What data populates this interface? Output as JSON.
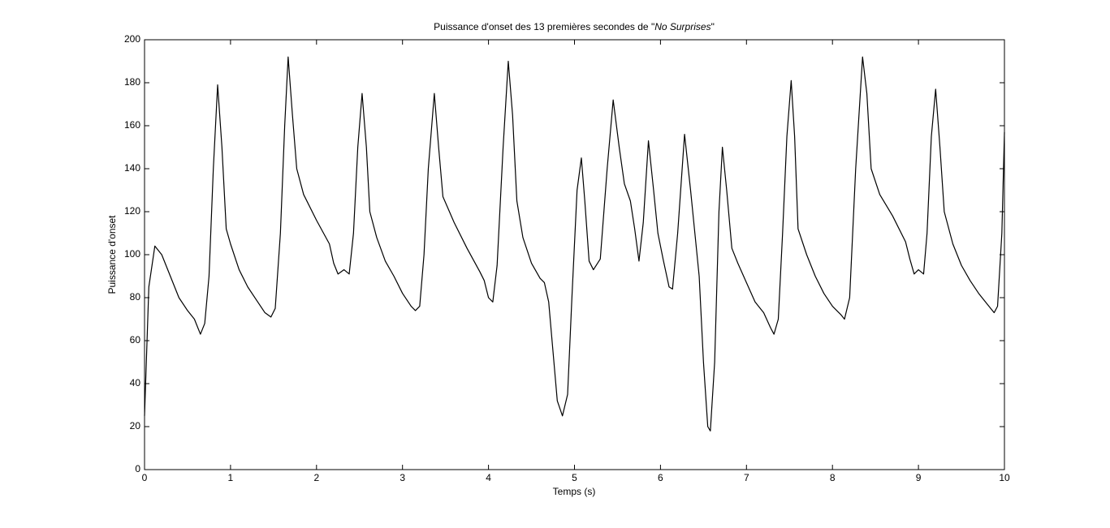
{
  "chart_data": {
    "type": "line",
    "title": {
      "before": "Puissance d'onset des 13 premières secondes de \"",
      "italic": "No Surprises",
      "after": "\""
    },
    "xlabel": "Temps (s)",
    "ylabel": "Puissance d'onset",
    "xlim": [
      0,
      10
    ],
    "ylim": [
      0,
      200
    ],
    "xticks": [
      0,
      1,
      2,
      3,
      4,
      5,
      6,
      7,
      8,
      9,
      10
    ],
    "yticks": [
      0,
      20,
      40,
      60,
      80,
      100,
      120,
      140,
      160,
      180,
      200
    ],
    "grid": false,
    "series": [
      {
        "color": "#000000",
        "x": [
          0,
          0.05,
          0.12,
          0.2,
          0.3,
          0.4,
          0.5,
          0.58,
          0.65,
          0.7,
          0.75,
          0.8,
          0.85,
          0.9,
          0.95,
          1.0,
          1.1,
          1.2,
          1.3,
          1.4,
          1.47,
          1.52,
          1.58,
          1.63,
          1.67,
          1.72,
          1.77,
          1.85,
          2.0,
          2.15,
          2.2,
          2.25,
          2.32,
          2.38,
          2.43,
          2.48,
          2.53,
          2.58,
          2.62,
          2.7,
          2.8,
          2.9,
          3.0,
          3.1,
          3.15,
          3.2,
          3.25,
          3.3,
          3.37,
          3.42,
          3.47,
          3.6,
          3.75,
          3.9,
          3.95,
          4.0,
          4.05,
          4.1,
          4.17,
          4.23,
          4.28,
          4.33,
          4.4,
          4.5,
          4.6,
          4.65,
          4.7,
          4.75,
          4.8,
          4.86,
          4.92,
          4.97,
          5.03,
          5.08,
          5.12,
          5.17,
          5.22,
          5.3,
          5.38,
          5.45,
          5.52,
          5.58,
          5.65,
          5.7,
          5.75,
          5.8,
          5.86,
          5.92,
          5.97,
          6.03,
          6.1,
          6.14,
          6.2,
          6.28,
          6.35,
          6.4,
          6.45,
          6.5,
          6.55,
          6.58,
          6.63,
          6.68,
          6.72,
          6.77,
          6.83,
          6.9,
          7.0,
          7.1,
          7.2,
          7.28,
          7.32,
          7.37,
          7.42,
          7.47,
          7.52,
          7.56,
          7.6,
          7.7,
          7.8,
          7.9,
          8.0,
          8.1,
          8.14,
          8.2,
          8.27,
          8.35,
          8.4,
          8.45,
          8.55,
          8.7,
          8.85,
          8.9,
          8.95,
          9.0,
          9.06,
          9.1,
          9.15,
          9.2,
          9.25,
          9.3,
          9.4,
          9.5,
          9.6,
          9.7,
          9.8,
          9.88,
          9.92,
          9.97,
          10.0
        ],
        "values": [
          25,
          85,
          104,
          100,
          90,
          80,
          74,
          70,
          63,
          68,
          90,
          140,
          179,
          150,
          112,
          105,
          93,
          85,
          79,
          73,
          71,
          75,
          110,
          160,
          192,
          165,
          140,
          128,
          116,
          105,
          96,
          91,
          93,
          91,
          110,
          150,
          175,
          150,
          120,
          108,
          97,
          90,
          82,
          76,
          74,
          76,
          100,
          140,
          175,
          150,
          127,
          115,
          103,
          92,
          88,
          80,
          78,
          95,
          150,
          190,
          165,
          125,
          108,
          96,
          89,
          87,
          78,
          55,
          32,
          25,
          35,
          80,
          130,
          145,
          125,
          97,
          93,
          98,
          140,
          172,
          150,
          133,
          125,
          112,
          97,
          115,
          153,
          130,
          110,
          98,
          85,
          84,
          110,
          156,
          130,
          110,
          90,
          50,
          20,
          18,
          50,
          120,
          150,
          130,
          103,
          96,
          87,
          78,
          73,
          66,
          63,
          70,
          110,
          155,
          181,
          155,
          112,
          100,
          90,
          82,
          76,
          72,
          70,
          80,
          140,
          192,
          175,
          140,
          128,
          118,
          106,
          98,
          91,
          93,
          91,
          110,
          155,
          177,
          150,
          120,
          105,
          95,
          88,
          82,
          77,
          73,
          76,
          110,
          157
        ]
      }
    ]
  }
}
